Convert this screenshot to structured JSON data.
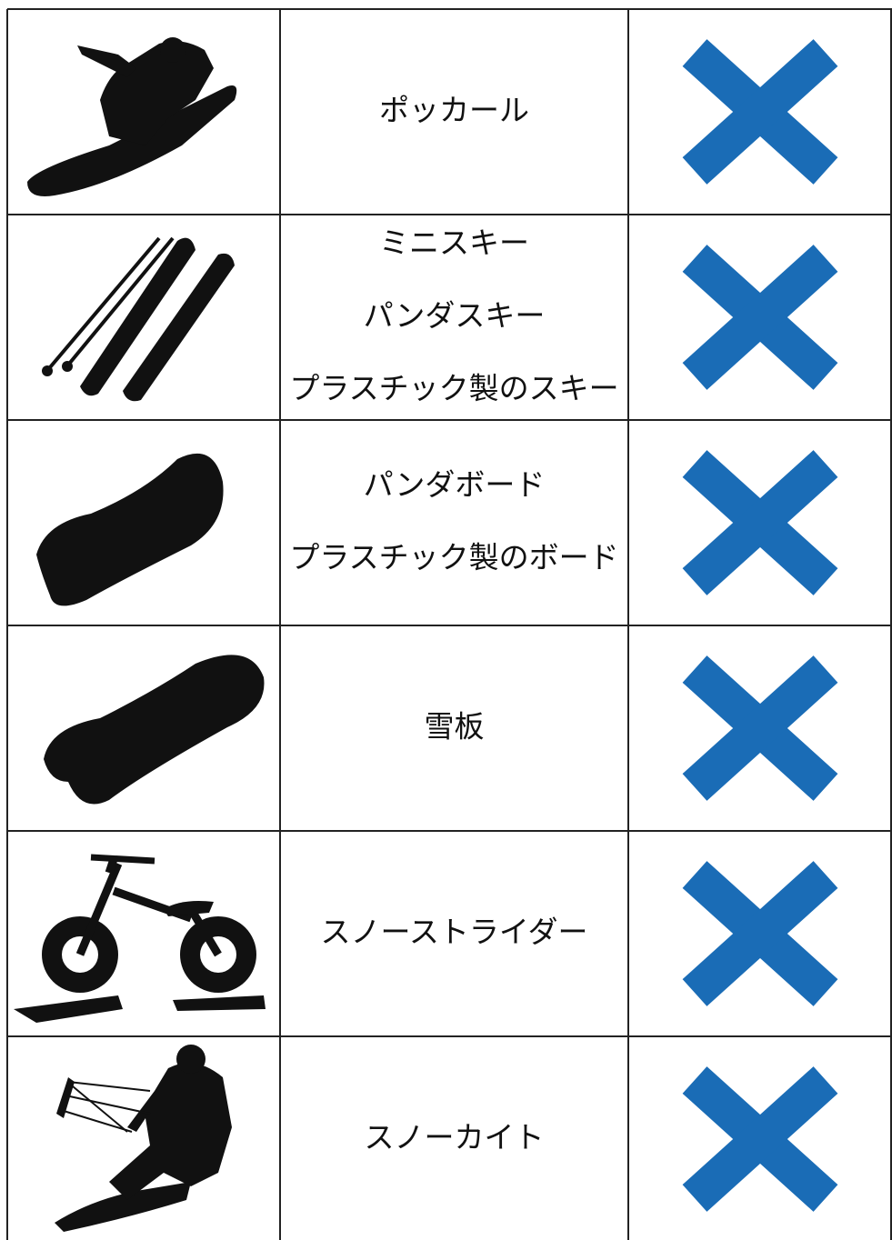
{
  "table": {
    "rows": [
      {
        "items": [
          "ポッカール"
        ]
      },
      {
        "items": [
          "ミニスキー",
          "パンダスキー",
          "プラスチック製のスキー"
        ]
      },
      {
        "items": [
          "パンダボード",
          "プラスチック製のボード"
        ]
      },
      {
        "items": [
          "雪板"
        ]
      },
      {
        "items": [
          "スノーストライダー"
        ]
      },
      {
        "items": [
          "スノーカイト"
        ]
      }
    ]
  }
}
